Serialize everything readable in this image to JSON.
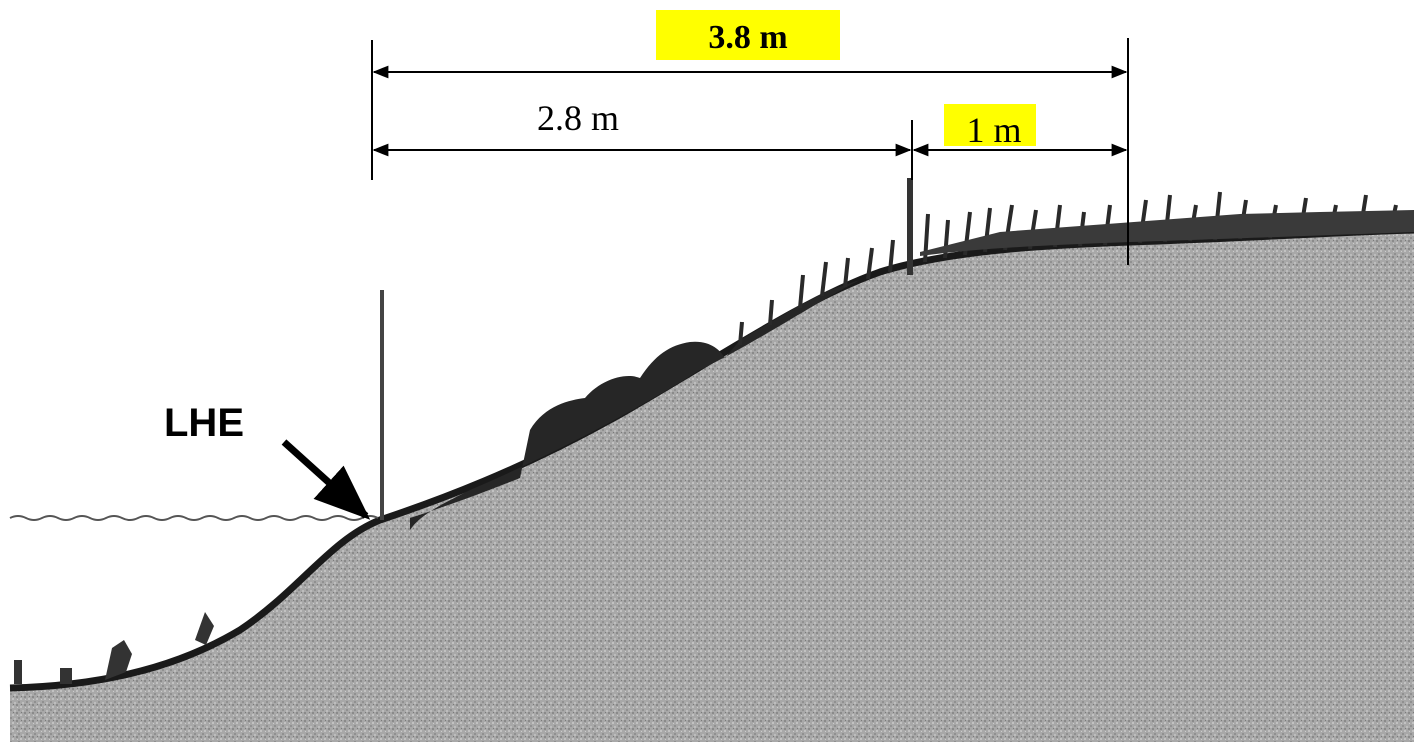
{
  "labels": {
    "total_width": "3.8 m",
    "left_width": "2.8 m",
    "right_width": "1 m",
    "waterline_marker": "LHE"
  },
  "colors": {
    "highlight": "#ffff00",
    "soil": "#a6a6a6",
    "soil_speckle": "#7f7f7f",
    "outline": "#1a1a1a",
    "vegetation": "#2a2a2a",
    "water_line": "#555555"
  }
}
